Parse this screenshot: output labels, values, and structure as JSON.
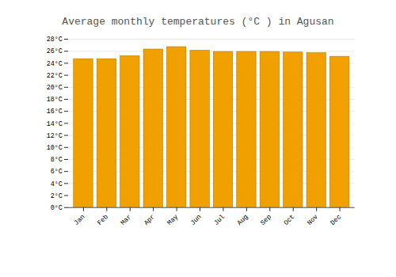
{
  "chart_data": {
    "type": "bar",
    "title": "Average monthly temperatures (°C ) in Agusan",
    "categories": [
      "Jan",
      "Feb",
      "Mar",
      "Apr",
      "May",
      "Jun",
      "Jul",
      "Aug",
      "Sep",
      "Oct",
      "Nov",
      "Dec"
    ],
    "values": [
      24.7,
      24.7,
      25.2,
      26.3,
      26.7,
      26.1,
      25.9,
      25.9,
      25.9,
      25.8,
      25.7,
      25.1
    ],
    "color": "#F0A000",
    "ylim": [
      0,
      28
    ],
    "yticks": [
      {
        "value": 0,
        "label": "0°C"
      },
      {
        "value": 2,
        "label": "2°C"
      },
      {
        "value": 4,
        "label": "4°C"
      },
      {
        "value": 6,
        "label": "6°C"
      },
      {
        "value": 8,
        "label": "8°C"
      },
      {
        "value": 10,
        "label": "10°C"
      },
      {
        "value": 12,
        "label": "12°C"
      },
      {
        "value": 14,
        "label": "14°C"
      },
      {
        "value": 16,
        "label": "16°C"
      },
      {
        "value": 18,
        "label": "18°C"
      },
      {
        "value": 20,
        "label": "20°C"
      },
      {
        "value": 22,
        "label": "22°C"
      },
      {
        "value": 24,
        "label": "24°C"
      },
      {
        "value": 26,
        "label": "26°C"
      },
      {
        "value": 28,
        "label": "28°C"
      }
    ],
    "grid": true
  }
}
